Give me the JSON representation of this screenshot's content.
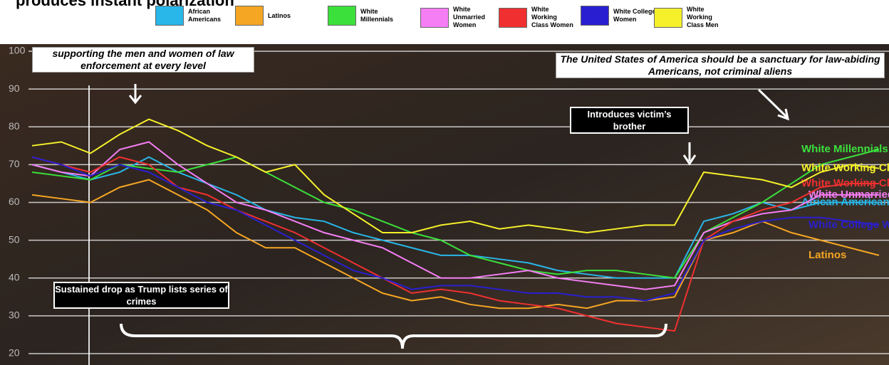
{
  "chart_data": {
    "type": "line",
    "title": "produces instant polarization",
    "categories": [
      null,
      null,
      null,
      null,
      null,
      null,
      null,
      null,
      null,
      null,
      null,
      null,
      null,
      null,
      null,
      null,
      null,
      null,
      null,
      null,
      null,
      null,
      null,
      null,
      null,
      null,
      null,
      null,
      null,
      null
    ],
    "series": [
      {
        "name": "African Americans",
        "color": "#29b6e8",
        "values": [
          70,
          68,
          66,
          68,
          72,
          68,
          65,
          62,
          58,
          56,
          55,
          52,
          50,
          48,
          46,
          46,
          45,
          44,
          42,
          41,
          40,
          40,
          40,
          55,
          57,
          60,
          58,
          60,
          60,
          60
        ]
      },
      {
        "name": "Latinos",
        "color": "#f5a623",
        "values": [
          62,
          61,
          60,
          64,
          66,
          62,
          58,
          52,
          48,
          48,
          44,
          40,
          36,
          34,
          35,
          33,
          32,
          32,
          33,
          32,
          34,
          34,
          35,
          50,
          52,
          55,
          52,
          50,
          48,
          46
        ]
      },
      {
        "name": "White Millennials",
        "color": "#3be03b",
        "values": [
          68,
          67,
          66,
          70,
          69,
          68,
          70,
          72,
          68,
          64,
          60,
          58,
          55,
          52,
          50,
          46,
          44,
          42,
          41,
          42,
          42,
          41,
          40,
          52,
          56,
          60,
          65,
          70,
          72,
          74
        ]
      },
      {
        "name": "White Unmarried Women",
        "color": "#f57ef5",
        "values": [
          70,
          68,
          67,
          74,
          76,
          70,
          65,
          60,
          58,
          55,
          52,
          50,
          48,
          44,
          40,
          40,
          41,
          42,
          40,
          39,
          38,
          37,
          38,
          52,
          55,
          57,
          58,
          62,
          62,
          62
        ]
      },
      {
        "name": "White Working Class Women",
        "color": "#f03030",
        "values": [
          72,
          70,
          68,
          72,
          70,
          64,
          62,
          58,
          55,
          52,
          48,
          44,
          40,
          36,
          37,
          36,
          34,
          33,
          32,
          30,
          28,
          27,
          26,
          50,
          55,
          58,
          60,
          64,
          65,
          65
        ]
      },
      {
        "name": "White College Women",
        "color": "#2a1fd0",
        "values": [
          72,
          70,
          67,
          70,
          68,
          64,
          60,
          58,
          54,
          50,
          46,
          42,
          40,
          37,
          38,
          38,
          37,
          36,
          36,
          35,
          35,
          34,
          36,
          50,
          53,
          55,
          56,
          56,
          55,
          54
        ]
      },
      {
        "name": "White Working Class Men",
        "color": "#f5f02a",
        "values": [
          75,
          76,
          73,
          78,
          82,
          79,
          75,
          72,
          68,
          70,
          62,
          57,
          52,
          52,
          54,
          55,
          53,
          54,
          53,
          52,
          53,
          54,
          54,
          68,
          67,
          66,
          64,
          68,
          70,
          69
        ]
      }
    ],
    "ylim": [
      20,
      100
    ],
    "yticks": [
      20,
      30,
      40,
      50,
      60,
      70,
      80,
      90,
      100
    ],
    "grid": true,
    "annotations": [
      "supporting the men and women of law enforcement at every level",
      "The United States of America should be a sanctuary for law-abiding Americans, not criminal aliens",
      "Introduces victim’s brother",
      "Sustained drop as Trump lists series of crimes"
    ]
  }
}
